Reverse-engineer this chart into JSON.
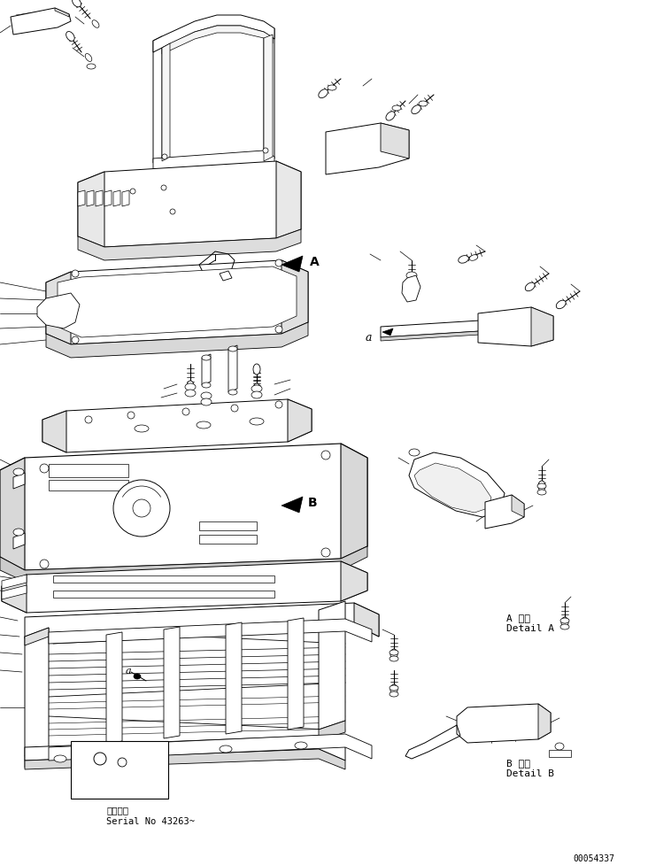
{
  "bg_color": "#ffffff",
  "line_color": "#000000",
  "fig_width": 7.32,
  "fig_height": 9.78,
  "dpi": 100,
  "bottom_left_text1": "適用号機",
  "bottom_left_text2": "Serial No 43263~",
  "bottom_right_text": "00054337",
  "detail_A_text1": "A 詳細",
  "detail_A_text2": "Detail A",
  "detail_B_text1": "B 詳細",
  "detail_B_text2": "Detail B",
  "label_A": "A",
  "label_B": "B",
  "label_a_main": "a",
  "label_a_detail": "a"
}
